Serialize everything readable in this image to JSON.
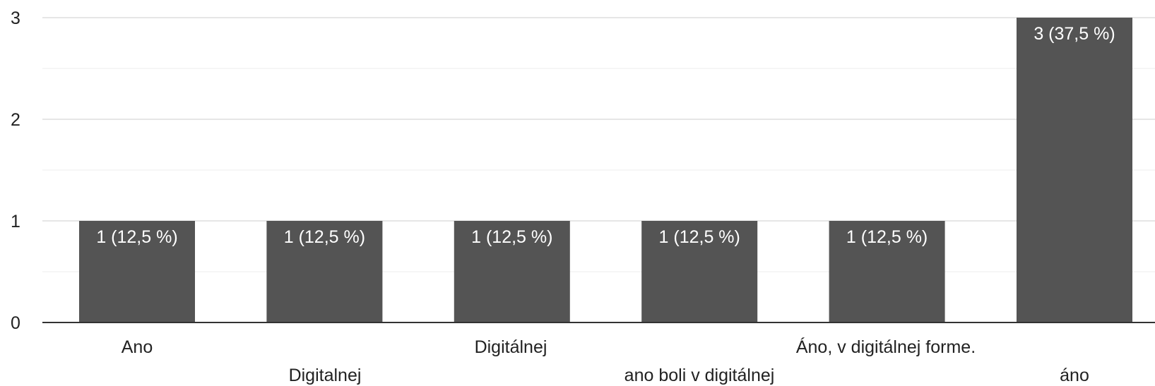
{
  "chart_data": {
    "type": "bar",
    "categories": [
      "Ano",
      "Digitalnej",
      "Digitálnej",
      "ano boli v digitálnej",
      "Áno, v digitálnej forme.",
      "áno"
    ],
    "values": [
      1,
      1,
      1,
      1,
      1,
      3
    ],
    "data_labels": [
      "1 (12,5 %)",
      "1 (12,5 %)",
      "1 (12,5 %)",
      "1 (12,5 %)",
      "1 (12,5 %)",
      "3 (37,5 %)"
    ],
    "ylim": [
      0,
      3
    ],
    "yticks": [
      "0",
      "1",
      "2",
      "3"
    ],
    "grid": true,
    "bar_color": "#545454"
  }
}
